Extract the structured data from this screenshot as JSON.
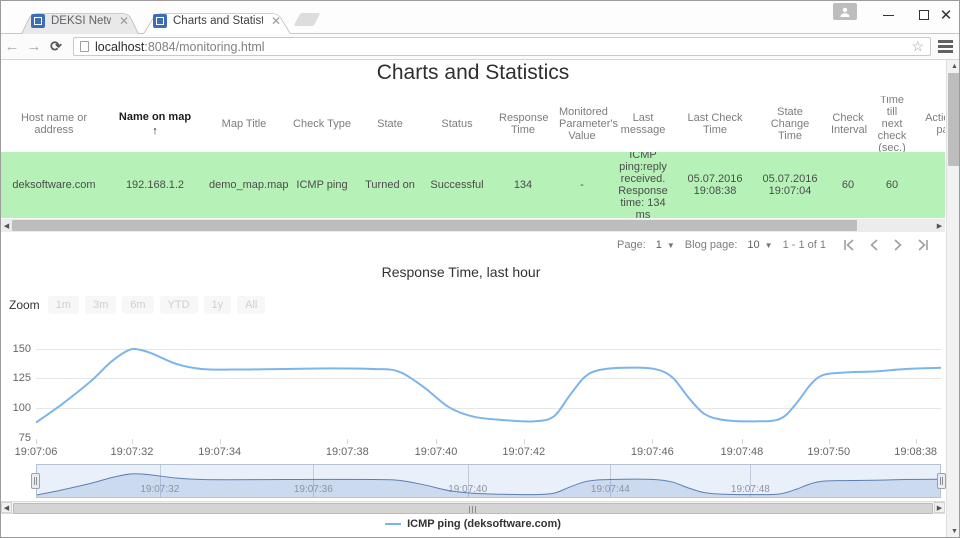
{
  "browser": {
    "tabs": [
      {
        "title": "DEKSI Network Administ",
        "active": false
      },
      {
        "title": "Charts and Statistics",
        "active": true
      }
    ],
    "url_host": "localhost",
    "url_rest": ":8084/monitoring.html"
  },
  "page": {
    "title": "Charts and Statistics",
    "table": {
      "columns": [
        {
          "label": "Host name or address",
          "sorted": false
        },
        {
          "label": "Name on map",
          "sorted": true
        },
        {
          "label": "Map Title",
          "sorted": false
        },
        {
          "label": "Check Type",
          "sorted": false
        },
        {
          "label": "State",
          "sorted": false
        },
        {
          "label": "Status",
          "sorted": false
        },
        {
          "label": "Response Time",
          "sorted": false
        },
        {
          "label": "Monitored Parameter's Value",
          "sorted": false
        },
        {
          "label": "Last message",
          "sorted": false
        },
        {
          "label": "Last Check Time",
          "sorted": false
        },
        {
          "label": "State Change Time",
          "sorted": false
        },
        {
          "label": "Check Interval",
          "sorted": false
        },
        {
          "label": "Time till next check (sec.)",
          "sorted": false
        },
        {
          "label": "Action on pass",
          "sorted": false
        }
      ],
      "row": [
        "deksoftware.com",
        "192.168.1.2",
        "demo_map.map",
        "ICMP ping",
        "Turned on",
        "Successful",
        "134",
        "-",
        "ICMP ping:reply received. Response time: 134 ms",
        "05.07.2016 19:08:38",
        "05.07.2016 19:07:04",
        "60",
        "60",
        ""
      ]
    },
    "pagination": {
      "page_label": "Page:",
      "page_value": "1",
      "size_label": "Blog page:",
      "size_value": "10",
      "range": "1 - 1 of 1"
    }
  },
  "chart_data": {
    "type": "line",
    "title": "Response Time, last hour",
    "xlabel": "",
    "ylabel": "",
    "ylim": [
      75,
      159
    ],
    "grid": true,
    "legend_position": "bottom",
    "zoom_label": "Zoom",
    "zoom_buttons": [
      "1m",
      "3m",
      "6m",
      "YTD",
      "1y",
      "All"
    ],
    "y_ticks": [
      75,
      100,
      125,
      150
    ],
    "x_ticks": [
      {
        "f": 0.0,
        "label": "19:07:06"
      },
      {
        "f": 0.106,
        "label": "19:07:32"
      },
      {
        "f": 0.203,
        "label": "19:07:34"
      },
      {
        "f": 0.344,
        "label": "19:07:38"
      },
      {
        "f": 0.442,
        "label": "19:07:40"
      },
      {
        "f": 0.539,
        "label": "19:07:42"
      },
      {
        "f": 0.681,
        "label": "19:07:46"
      },
      {
        "f": 0.78,
        "label": "19:07:48"
      },
      {
        "f": 0.876,
        "label": "19:07:50"
      },
      {
        "f": 0.972,
        "label": "19:08:38"
      }
    ],
    "navigator_ticks": [
      {
        "f": 0.136,
        "label": "19:07:32"
      },
      {
        "f": 0.306,
        "label": "19:07:36"
      },
      {
        "f": 0.477,
        "label": "19:07:40"
      },
      {
        "f": 0.635,
        "label": "19:07:44"
      },
      {
        "f": 0.79,
        "label": "19:07:48"
      }
    ],
    "series": [
      {
        "name": "ICMP ping (deksoftware.com)",
        "color": "#7cb5ec",
        "points": [
          [
            0,
            88
          ],
          [
            0.028,
            103
          ],
          [
            0.061,
            123
          ],
          [
            0.083,
            139
          ],
          [
            0.103,
            149
          ],
          [
            0.115,
            149
          ],
          [
            0.128,
            146
          ],
          [
            0.156,
            137
          ],
          [
            0.183,
            133
          ],
          [
            0.217,
            132.5
          ],
          [
            0.272,
            133
          ],
          [
            0.328,
            133.5
          ],
          [
            0.372,
            133
          ],
          [
            0.4,
            131
          ],
          [
            0.428,
            118
          ],
          [
            0.456,
            101
          ],
          [
            0.483,
            93
          ],
          [
            0.517,
            90
          ],
          [
            0.55,
            89
          ],
          [
            0.572,
            93
          ],
          [
            0.589,
            110
          ],
          [
            0.606,
            126
          ],
          [
            0.622,
            132
          ],
          [
            0.65,
            134
          ],
          [
            0.683,
            133
          ],
          [
            0.703,
            126
          ],
          [
            0.722,
            108
          ],
          [
            0.739,
            95
          ],
          [
            0.761,
            90
          ],
          [
            0.794,
            89
          ],
          [
            0.822,
            91
          ],
          [
            0.839,
            103
          ],
          [
            0.856,
            120
          ],
          [
            0.87,
            128
          ],
          [
            0.894,
            130
          ],
          [
            0.928,
            131
          ],
          [
            0.961,
            133
          ],
          [
            1,
            134
          ]
        ]
      }
    ]
  }
}
